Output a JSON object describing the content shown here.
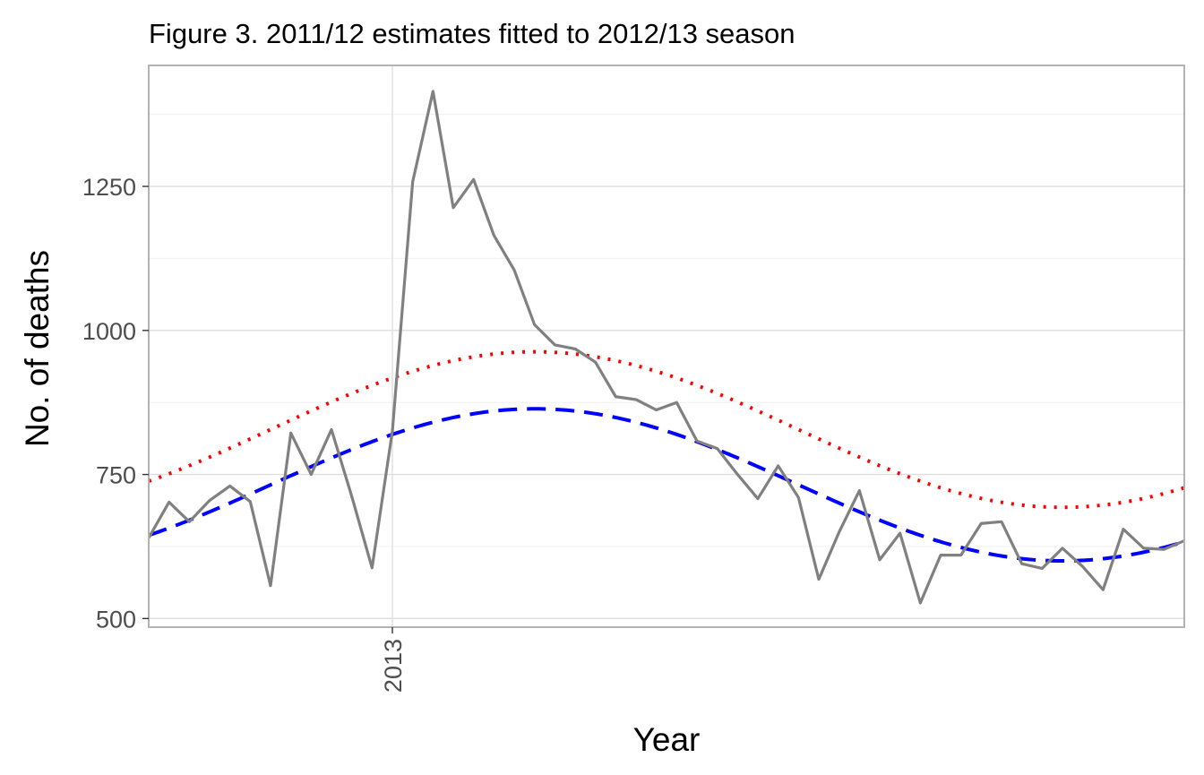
{
  "chart_data": {
    "type": "line",
    "title": "Figure 3. 2011/12 estimates fitted to 2012/13 season",
    "xlabel": "Year",
    "ylabel": "No. of deaths",
    "x_ticks": [
      "2013"
    ],
    "y_ticks": [
      500,
      750,
      1000,
      1250
    ],
    "ylim": [
      485,
      1460
    ],
    "grid": true,
    "legend": "none",
    "series": [
      {
        "style": "solid",
        "color": "#808080",
        "values": [
          640,
          702,
          668,
          705,
          730,
          703,
          557,
          822,
          750,
          828,
          712,
          588,
          825,
          1258,
          1415,
          1213,
          1262,
          1165,
          1105,
          1010,
          975,
          968,
          945,
          885,
          880,
          862,
          875,
          808,
          795,
          750,
          708,
          765,
          710,
          568,
          650,
          722,
          602,
          648,
          527,
          610,
          610,
          665,
          668,
          595,
          587,
          622,
          590,
          550,
          655,
          622,
          620,
          635
        ]
      },
      {
        "style": "dotted",
        "color": "#ff0000",
        "center": 828,
        "amplitude": 135,
        "period_weeks": 52,
        "peak_week": 19
      },
      {
        "style": "dashed",
        "color": "#0000ff",
        "center": 732,
        "amplitude": 132,
        "period_weeks": 52,
        "peak_week": 19
      }
    ]
  }
}
